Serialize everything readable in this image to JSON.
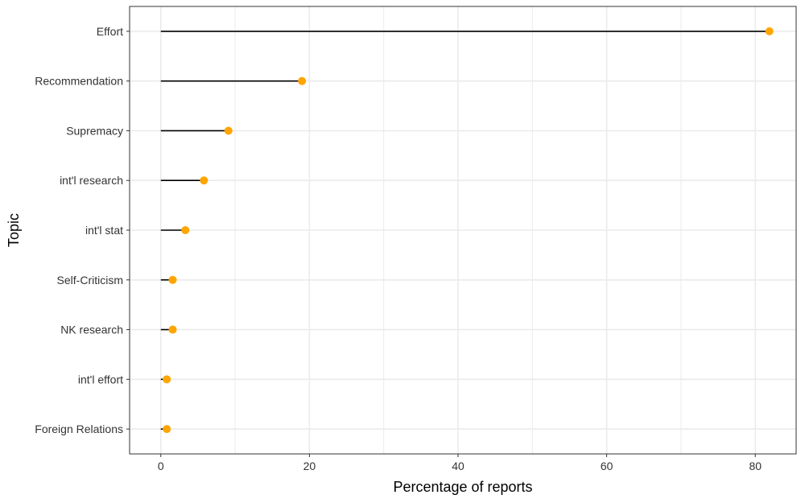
{
  "chart_data": {
    "type": "lollipop",
    "orientation": "horizontal",
    "xlabel": "Percentage of reports",
    "ylabel": "Topic",
    "xlim": [
      -4.2,
      85.5
    ],
    "xticks": [
      0,
      20,
      40,
      60,
      80
    ],
    "grid": true,
    "categories": [
      "Effort",
      "Recommendation",
      "Supremacy",
      "int'l research",
      "int'l stat",
      "Self-Criticism",
      "NK research",
      "int'l effort",
      "Foreign Relations"
    ],
    "values": [
      81.9,
      19.0,
      9.1,
      5.8,
      3.3,
      1.6,
      1.6,
      0.8,
      0.8
    ],
    "colors": {
      "point": "#FFA500",
      "stem": "#000000",
      "grid": "#EBEBEB",
      "panel_border": "#333333"
    }
  }
}
